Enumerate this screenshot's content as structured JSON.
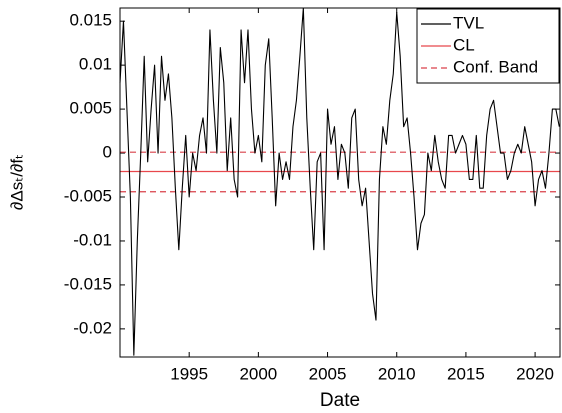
{
  "chart_data": {
    "type": "line",
    "xlabel": "Date",
    "ylabel": "∂Δsₜ/∂fₜ",
    "x": [
      1990,
      1990.25,
      1990.5,
      1990.75,
      1991,
      1991.25,
      1991.5,
      1991.75,
      1992,
      1992.25,
      1992.5,
      1992.75,
      1993,
      1993.25,
      1993.5,
      1993.75,
      1994,
      1994.25,
      1994.5,
      1994.75,
      1995,
      1995.25,
      1995.5,
      1995.75,
      1996,
      1996.25,
      1996.5,
      1996.75,
      1997,
      1997.25,
      1997.5,
      1997.75,
      1998,
      1998.25,
      1998.5,
      1998.75,
      1999,
      1999.25,
      1999.5,
      1999.75,
      2000,
      2000.25,
      2000.5,
      2000.75,
      2001,
      2001.25,
      2001.5,
      2001.75,
      2002,
      2002.25,
      2002.5,
      2002.75,
      2003,
      2003.25,
      2003.5,
      2003.75,
      2004,
      2004.25,
      2004.5,
      2004.75,
      2005,
      2005.25,
      2005.5,
      2005.75,
      2006,
      2006.25,
      2006.5,
      2006.75,
      2007,
      2007.25,
      2007.5,
      2007.75,
      2008,
      2008.25,
      2008.5,
      2008.75,
      2009,
      2009.25,
      2009.5,
      2009.75,
      2010,
      2010.25,
      2010.5,
      2010.75,
      2011,
      2011.25,
      2011.5,
      2011.75,
      2012,
      2012.25,
      2012.5,
      2012.75,
      2013,
      2013.25,
      2013.5,
      2013.75,
      2014,
      2014.25,
      2014.5,
      2014.75,
      2015,
      2015.25,
      2015.5,
      2015.75,
      2016,
      2016.25,
      2016.5,
      2016.75,
      2017,
      2017.25,
      2017.5,
      2017.75,
      2018,
      2018.25,
      2018.5,
      2018.75,
      2019,
      2019.25,
      2019.5,
      2019.75,
      2020,
      2020.25,
      2020.5,
      2020.75,
      2021,
      2021.25,
      2021.5,
      2021.75
    ],
    "series": [
      {
        "name": "TVL",
        "color": "#000000",
        "values": [
          0.008,
          0.015,
          0.005,
          -0.005,
          -0.023,
          -0.01,
          0.0,
          0.011,
          -0.001,
          0.005,
          0.01,
          0.0,
          0.011,
          0.006,
          0.009,
          0.004,
          -0.004,
          -0.011,
          -0.004,
          0.002,
          -0.005,
          0.0,
          -0.002,
          0.002,
          0.004,
          0.0,
          0.014,
          0.006,
          0.0,
          0.012,
          0.008,
          -0.002,
          0.004,
          -0.003,
          -0.005,
          0.014,
          0.008,
          0.014,
          0.005,
          0.0,
          0.002,
          -0.001,
          0.01,
          0.013,
          0.004,
          -0.006,
          0.0,
          -0.003,
          -0.001,
          -0.003,
          0.003,
          0.006,
          0.011,
          0.0165,
          0.004,
          -0.004,
          -0.011,
          -0.001,
          0.0,
          -0.011,
          0.005,
          0.001,
          0.003,
          -0.003,
          0.001,
          0.0,
          -0.004,
          0.004,
          0.005,
          -0.003,
          -0.006,
          -0.004,
          -0.01,
          -0.016,
          -0.019,
          -0.003,
          0.003,
          0.001,
          0.006,
          0.009,
          0.016,
          0.011,
          0.003,
          0.004,
          0.0,
          -0.005,
          -0.011,
          -0.008,
          -0.007,
          0.0,
          -0.002,
          0.002,
          -0.001,
          -0.003,
          -0.004,
          0.002,
          0.002,
          0.0,
          0.001,
          0.002,
          0.001,
          -0.003,
          -0.003,
          0.002,
          -0.004,
          -0.004,
          0.002,
          0.005,
          0.006,
          0.003,
          0.0,
          0.0,
          -0.003,
          -0.002,
          0.0,
          0.001,
          0.0,
          0.003,
          0.001,
          -0.001,
          -0.006,
          -0.003,
          -0.002,
          -0.004,
          0.0,
          0.005,
          0.005,
          0.003
        ]
      }
    ],
    "hlines": [
      {
        "name": "CL",
        "color": "#e8474c",
        "dashed": false,
        "values": [
          -0.0021
        ]
      },
      {
        "name": "Conf. Band",
        "color": "#d9404a",
        "dashed": true,
        "values": [
          0.0001,
          -0.0044
        ]
      }
    ],
    "xlim": [
      1990,
      2021.8
    ],
    "xticks": [
      1995,
      2000,
      2005,
      2010,
      2015,
      2020
    ],
    "ylim": [
      -0.0232,
      0.0165
    ],
    "yticks": [
      -0.02,
      -0.015,
      -0.01,
      -0.005,
      0,
      0.005,
      0.01,
      0.015
    ],
    "legend": "upper right"
  }
}
